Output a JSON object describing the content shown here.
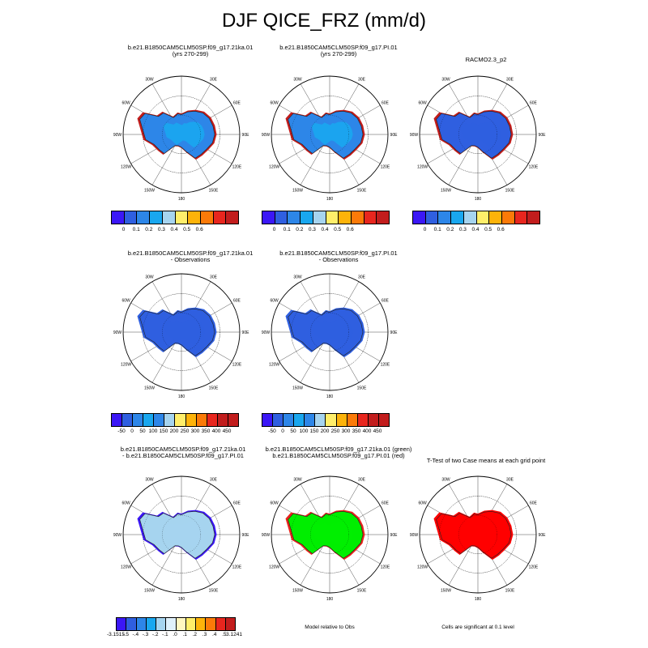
{
  "title": "DJF QICE_FRZ (mm/d)",
  "colors": {
    "c_blue4": "#3b17f6",
    "c_blue3": "#2f5fe0",
    "c_blue2": "#2d86e8",
    "c_blue1": "#19a7ef",
    "c_lightblue": "#a6d4ef",
    "c_yellow": "#ffee6a",
    "c_orange": "#fdb30a",
    "c_darkorange": "#fb7a08",
    "c_red": "#e8261e",
    "c_darkred": "#c21d1d",
    "c_green": "#00ee00",
    "c_ttest_red": "#ff0000",
    "c_white": "#ffffff"
  },
  "panels": [
    {
      "title_lines": [
        "b.e21.B1850CAM5CLM50SP.f09_g17.21ka.01",
        "(yrs 270-299)"
      ],
      "fill": "#2d86e8",
      "coast": "#c21d1d",
      "inner": "#19a7ef",
      "lon_labels": [
        "30W",
        "30E",
        "60W",
        "60E",
        "90W",
        "90E",
        "120W",
        "120E",
        "150W",
        "150E",
        "180"
      ]
    },
    {
      "title_lines": [
        "b.e21.B1850CAM5CLM50SP.f09_g17.PI.01",
        "(yrs 270-299)"
      ],
      "fill": "#2d86e8",
      "coast": "#c21d1d",
      "inner": "#19a7ef",
      "lon_labels": [
        "30W",
        "30E",
        "60W",
        "60E",
        "90W",
        "90E",
        "120W",
        "120E",
        "150W",
        "150E",
        "180"
      ]
    },
    {
      "title_lines": [
        "RACMO2.3_p2",
        ""
      ],
      "fill": "#2f5fe0",
      "coast": "#c21d1d",
      "inner": "#2f5fe0",
      "lon_labels": [
        "30W",
        "30E",
        "60W",
        "60E",
        "90W",
        "90E",
        "120W",
        "120E",
        "150W",
        "150E",
        "180"
      ]
    },
    {
      "title_lines": [
        "b.e21.B1850CAM5CLM50SP.f09_g17.21ka.01",
        "- Observations"
      ],
      "fill": "#2f5fe0",
      "coast": "#2f5fe0",
      "inner": "#2f5fe0",
      "lon_labels": [
        "30W",
        "30E",
        "60W",
        "60E",
        "90W",
        "90E",
        "120W",
        "120E",
        "150W",
        "150E",
        "180"
      ]
    },
    {
      "title_lines": [
        "b.e21.B1850CAM5CLM50SP.f09_g17.PI.01",
        "- Observations"
      ],
      "fill": "#2f5fe0",
      "coast": "#2f5fe0",
      "inner": "#2f5fe0",
      "lon_labels": [
        "30W",
        "30E",
        "60W",
        "60E",
        "90W",
        "90E",
        "120W",
        "120E",
        "150W",
        "150E",
        "180"
      ]
    },
    {
      "title_lines": [
        "b.e21.B1850CAM5CLM50SP.f09_g17.21ka.01",
        "- b.e21.B1850CAM5CLM50SP.f09_g17.PI.01"
      ],
      "fill": "#a6d4ef",
      "coast": "#3b17f6",
      "inner": "#a6d4ef",
      "lon_labels": [
        "30W",
        "30E",
        "60W",
        "60E",
        "90W",
        "90E",
        "120W",
        "120E",
        "150W",
        "150E",
        "180"
      ]
    },
    {
      "title_lines": [
        "b.e21.B1850CAM5CLM50SP.f09_g17.21ka.01 (green)",
        "b.e21.B1850CAM5CLM50SP.f09_g17.PI.01 (red)"
      ],
      "fill": "#00ee00",
      "coast": "#e8261e",
      "inner": "#00ee00",
      "lon_labels": [
        "30W",
        "30E",
        "60W",
        "60E",
        "90W",
        "90E",
        "120W",
        "120E",
        "150W",
        "150E",
        "180"
      ]
    },
    {
      "title_lines": [
        "T-Test of two Case means at each grid point",
        ""
      ],
      "fill": "#ff0000",
      "coast": "#ff0000",
      "inner": "#ff0000",
      "lon_labels": [
        "30W",
        "30E",
        "60W",
        "60E",
        "90W",
        "90E",
        "120W",
        "120E",
        "150W",
        "150E",
        "180"
      ]
    }
  ],
  "colorbars": {
    "row1": {
      "colors": [
        "#3b17f6",
        "#2f5fe0",
        "#2d86e8",
        "#19a7ef",
        "#a6d4ef",
        "#ffee6a",
        "#fdb30a",
        "#fb7a08",
        "#e8261e",
        "#c21d1d"
      ],
      "labels": [
        "0",
        "0.1",
        "0.2",
        "0.3",
        "0.4",
        "0.5",
        "0.6"
      ]
    },
    "row2": {
      "colors": [
        "#3b17f6",
        "#2f5fe0",
        "#2d86e8",
        "#19a7ef",
        "#2d86e8",
        "#a6d4ef",
        "#ffee6a",
        "#fdb30a",
        "#fb7a08",
        "#e8261e",
        "#c21d1d",
        "#c21d1d"
      ],
      "labels": [
        "-50",
        "0",
        "50",
        "100",
        "150",
        "200",
        "250",
        "300",
        "350",
        "400",
        "450"
      ]
    },
    "row3": {
      "colors": [
        "#3b17f6",
        "#2f5fe0",
        "#2d86e8",
        "#19a7ef",
        "#a6d4ef",
        "#dff0fb",
        "#fff7c0",
        "#ffee6a",
        "#fdb30a",
        "#fb7a08",
        "#e8261e",
        "#c21d1d"
      ],
      "labels": [
        "-3.1515",
        "-.5",
        "-.4",
        "-.3",
        "-.2",
        "-.1",
        ".0",
        ".1",
        ".2",
        ".3",
        ".4",
        ".5",
        "3.1241"
      ]
    }
  },
  "captions": {
    "model_relative": "Model relative to Obs",
    "significance": "Cells are significant at 0.1 level"
  },
  "chart_data": {
    "type": "heatmap",
    "title": "DJF QICE_FRZ (mm/d)",
    "variable": "QICE_FRZ",
    "season": "DJF",
    "units": "mm/d",
    "cases": [
      "b.e21.B1850CAM5CLM50SP.f09_g17.21ka.01 (yrs 270-299)",
      "b.e21.B1850CAM5CLM50SP.f09_g17.PI.01 (yrs 270-299)",
      "RACMO2.3_p2"
    ],
    "difference_panels": [
      "b.e21.B1850CAM5CLM50SP.f09_g17.21ka.01 - Observations",
      "b.e21.B1850CAM5CLM50SP.f09_g17.PI.01 - Observations",
      "b.e21.B1850CAM5CLM50SP.f09_g17.21ka.01 - b.e21.B1850CAM5CLM50SP.f09_g17.PI.01"
    ],
    "colorbar_levels_case": [
      0,
      0.1,
      0.2,
      0.3,
      0.4,
      0.5,
      0.6
    ],
    "colorbar_levels_obs_diff": [
      -50,
      0,
      50,
      100,
      150,
      200,
      250,
      300,
      350,
      400,
      450
    ],
    "colorbar_levels_case_diff": [
      -3.1515,
      -0.5,
      -0.4,
      -0.3,
      -0.2,
      -0.1,
      0.0,
      0.1,
      0.2,
      0.3,
      0.4,
      0.5,
      3.1241
    ],
    "projection": "south polar stereographic",
    "significance_level": 0.1
  }
}
